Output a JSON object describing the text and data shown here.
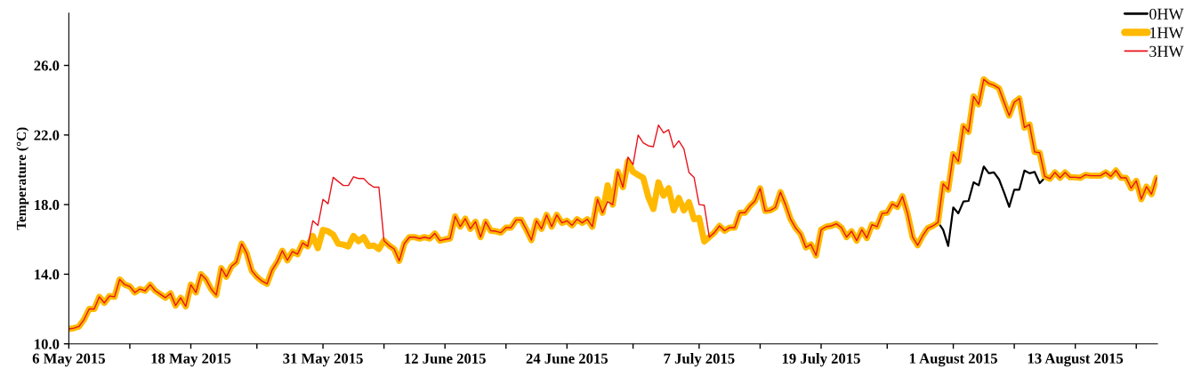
{
  "chart_data": {
    "type": "line",
    "ylabel": "Temperature (°C)",
    "xlim": [
      "2015-05-06T00:00",
      "2015-08-21T02:00"
    ],
    "ylim": [
      10,
      29
    ],
    "yticks": [
      {
        "value": 10,
        "label": "10.0"
      },
      {
        "value": 14,
        "label": "14.0"
      },
      {
        "value": 18,
        "label": "18.0"
      },
      {
        "value": 22,
        "label": "22.0"
      },
      {
        "value": 26,
        "label": "26.0"
      }
    ],
    "xticks": [
      {
        "value": "2015-05-06",
        "label": "6 May 2015"
      },
      {
        "value": "2015-05-12",
        "label": null
      },
      {
        "value": "2015-05-18",
        "label": "18 May 2015"
      },
      {
        "value": "2015-05-24T12:00",
        "label": null
      },
      {
        "value": "2015-05-31",
        "label": "31 May 2015"
      },
      {
        "value": "2015-06-06",
        "label": null
      },
      {
        "value": "2015-06-12",
        "label": "12 June 2015"
      },
      {
        "value": "2015-06-18",
        "label": null
      },
      {
        "value": "2015-06-24",
        "label": "24 June 2015"
      },
      {
        "value": "2015-06-30T12:00",
        "label": null
      },
      {
        "value": "2015-07-07",
        "label": "7 July 2015"
      },
      {
        "value": "2015-07-13",
        "label": null
      },
      {
        "value": "2015-07-19",
        "label": "19 July 2015"
      },
      {
        "value": "2015-07-25T12:00",
        "label": null
      },
      {
        "value": "2015-08-01",
        "label": "1 August 2015"
      },
      {
        "value": "2015-08-07",
        "label": null
      },
      {
        "value": "2015-08-13",
        "label": "13 August 2015"
      },
      {
        "value": "2015-08-19",
        "label": null
      }
    ],
    "grid": false,
    "legend": "top right",
    "line_style": "solid",
    "marker": "none",
    "x": [
      "2015-05-06T00:00",
      "2015-05-06T12:00",
      "2015-05-07T00:00",
      "2015-05-07T12:00",
      "2015-05-08T00:00",
      "2015-05-08T12:00",
      "2015-05-09T00:00",
      "2015-05-09T12:00",
      "2015-05-10T00:00",
      "2015-05-10T12:00",
      "2015-05-11T00:00",
      "2015-05-11T12:00",
      "2015-05-12T00:00",
      "2015-05-12T12:00",
      "2015-05-13T00:00",
      "2015-05-13T12:00",
      "2015-05-14T00:00",
      "2015-05-14T12:00",
      "2015-05-15T00:00",
      "2015-05-15T12:00",
      "2015-05-16T00:00",
      "2015-05-16T12:00",
      "2015-05-17T00:00",
      "2015-05-17T12:00",
      "2015-05-18T00:00",
      "2015-05-18T12:00",
      "2015-05-19T00:00",
      "2015-05-19T12:00",
      "2015-05-20T00:00",
      "2015-05-20T12:00",
      "2015-05-21T00:00",
      "2015-05-21T12:00",
      "2015-05-22T00:00",
      "2015-05-22T12:00",
      "2015-05-23T00:00",
      "2015-05-23T12:00",
      "2015-05-24T00:00",
      "2015-05-24T12:00",
      "2015-05-25T00:00",
      "2015-05-25T12:00",
      "2015-05-26T00:00",
      "2015-05-26T12:00",
      "2015-05-27T00:00",
      "2015-05-27T12:00",
      "2015-05-28T00:00",
      "2015-05-28T12:00",
      "2015-05-29T00:00",
      "2015-05-29T12:00",
      "2015-05-30T00:00",
      "2015-05-30T12:00",
      "2015-05-31T00:00",
      "2015-05-31T12:00",
      "2015-06-01T00:00",
      "2015-06-01T12:00",
      "2015-06-02T00:00",
      "2015-06-02T12:00",
      "2015-06-03T00:00",
      "2015-06-03T12:00",
      "2015-06-04T00:00",
      "2015-06-04T12:00",
      "2015-06-05T00:00",
      "2015-06-05T12:00",
      "2015-06-06T00:00",
      "2015-06-06T12:00",
      "2015-06-07T00:00",
      "2015-06-07T12:00",
      "2015-06-08T00:00",
      "2015-06-08T12:00",
      "2015-06-09T00:00",
      "2015-06-09T12:00",
      "2015-06-10T00:00",
      "2015-06-10T12:00",
      "2015-06-11T00:00",
      "2015-06-11T12:00",
      "2015-06-12T00:00",
      "2015-06-12T12:00",
      "2015-06-13T00:00",
      "2015-06-13T12:00",
      "2015-06-14T00:00",
      "2015-06-14T12:00",
      "2015-06-15T00:00",
      "2015-06-15T12:00",
      "2015-06-16T00:00",
      "2015-06-16T12:00",
      "2015-06-17T00:00",
      "2015-06-17T12:00",
      "2015-06-18T00:00",
      "2015-06-18T12:00",
      "2015-06-19T00:00",
      "2015-06-19T12:00",
      "2015-06-20T00:00",
      "2015-06-20T12:00",
      "2015-06-21T00:00",
      "2015-06-21T12:00",
      "2015-06-22T00:00",
      "2015-06-22T12:00",
      "2015-06-23T00:00",
      "2015-06-23T12:00",
      "2015-06-24T00:00",
      "2015-06-24T12:00",
      "2015-06-25T00:00",
      "2015-06-25T12:00",
      "2015-06-26T00:00",
      "2015-06-26T12:00",
      "2015-06-27T00:00",
      "2015-06-27T12:00",
      "2015-06-28T00:00",
      "2015-06-28T12:00",
      "2015-06-29T00:00",
      "2015-06-29T12:00",
      "2015-06-30T00:00",
      "2015-06-30T12:00",
      "2015-07-01T00:00",
      "2015-07-01T12:00",
      "2015-07-02T00:00",
      "2015-07-02T12:00",
      "2015-07-03T00:00",
      "2015-07-03T12:00",
      "2015-07-04T00:00",
      "2015-07-04T12:00",
      "2015-07-05T00:00",
      "2015-07-05T12:00",
      "2015-07-06T00:00",
      "2015-07-06T12:00",
      "2015-07-07T00:00",
      "2015-07-07T12:00",
      "2015-07-08T00:00",
      "2015-07-08T12:00",
      "2015-07-09T00:00",
      "2015-07-09T12:00",
      "2015-07-10T00:00",
      "2015-07-10T12:00",
      "2015-07-11T00:00",
      "2015-07-11T12:00",
      "2015-07-12T00:00",
      "2015-07-12T12:00",
      "2015-07-13T00:00",
      "2015-07-13T12:00",
      "2015-07-14T00:00",
      "2015-07-14T12:00",
      "2015-07-15T00:00",
      "2015-07-15T12:00",
      "2015-07-16T00:00",
      "2015-07-16T12:00",
      "2015-07-17T00:00",
      "2015-07-17T12:00",
      "2015-07-18T00:00",
      "2015-07-18T12:00",
      "2015-07-19T00:00",
      "2015-07-19T12:00",
      "2015-07-20T00:00",
      "2015-07-20T12:00",
      "2015-07-21T00:00",
      "2015-07-21T12:00",
      "2015-07-22T00:00",
      "2015-07-22T12:00",
      "2015-07-23T00:00",
      "2015-07-23T12:00",
      "2015-07-24T00:00",
      "2015-07-24T12:00",
      "2015-07-25T00:00",
      "2015-07-25T12:00",
      "2015-07-26T00:00",
      "2015-07-26T12:00",
      "2015-07-27T00:00",
      "2015-07-27T12:00",
      "2015-07-28T00:00",
      "2015-07-28T12:00",
      "2015-07-29T00:00",
      "2015-07-29T12:00",
      "2015-07-30T00:00",
      "2015-07-30T12:00",
      "2015-07-31T00:00",
      "2015-07-31T12:00",
      "2015-08-01T00:00",
      "2015-08-01T12:00",
      "2015-08-02T00:00",
      "2015-08-02T12:00",
      "2015-08-03T00:00",
      "2015-08-03T12:00",
      "2015-08-04T00:00",
      "2015-08-04T12:00",
      "2015-08-05T00:00",
      "2015-08-05T12:00",
      "2015-08-06T00:00",
      "2015-08-06T12:00",
      "2015-08-07T00:00",
      "2015-08-07T12:00",
      "2015-08-08T00:00",
      "2015-08-08T12:00",
      "2015-08-09T00:00",
      "2015-08-09T12:00",
      "2015-08-10T00:00",
      "2015-08-10T12:00",
      "2015-08-11T00:00",
      "2015-08-11T12:00",
      "2015-08-12T00:00",
      "2015-08-12T12:00",
      "2015-08-13T00:00",
      "2015-08-13T12:00",
      "2015-08-14T00:00",
      "2015-08-14T12:00",
      "2015-08-15T00:00",
      "2015-08-15T12:00",
      "2015-08-16T00:00",
      "2015-08-16T12:00",
      "2015-08-17T00:00",
      "2015-08-17T12:00",
      "2015-08-18T00:00",
      "2015-08-18T12:00",
      "2015-08-19T00:00",
      "2015-08-19T12:00",
      "2015-08-20T00:00",
      "2015-08-20T12:00",
      "2015-08-21T00:00"
    ],
    "series": [
      {
        "name": "0HW",
        "color": "#000000",
        "x": [
          "2015-07-30T12:00",
          "2015-07-31T00:00",
          "2015-07-31T12:00",
          "2015-08-01T00:00",
          "2015-08-01T12:00",
          "2015-08-02T00:00",
          "2015-08-02T12:00",
          "2015-08-03T00:00",
          "2015-08-03T12:00",
          "2015-08-04T00:00",
          "2015-08-04T12:00",
          "2015-08-05T00:00",
          "2015-08-05T12:00",
          "2015-08-06T00:00",
          "2015-08-06T12:00",
          "2015-08-07T00:00",
          "2015-08-07T12:00",
          "2015-08-08T00:00",
          "2015-08-08T12:00",
          "2015-08-09T00:00",
          "2015-08-09T12:00",
          "2015-08-10T00:00"
        ],
        "values": [
          16.98,
          16.56,
          15.62,
          17.84,
          17.5,
          18.18,
          18.21,
          19.28,
          19.11,
          20.19,
          19.8,
          19.85,
          19.45,
          18.69,
          17.87,
          18.86,
          18.86,
          19.96,
          19.8,
          19.88,
          19.23,
          19.54
        ]
      },
      {
        "name": "1HW",
        "color": "#ffb900",
        "values": [
          10.85,
          10.9,
          11.0,
          11.4,
          12.0,
          12.0,
          12.7,
          12.35,
          12.75,
          12.7,
          13.7,
          13.4,
          13.3,
          12.95,
          13.15,
          13.05,
          13.4,
          13.05,
          12.85,
          12.65,
          12.9,
          12.2,
          12.65,
          12.15,
          13.4,
          12.95,
          14.0,
          13.7,
          13.15,
          12.8,
          14.35,
          13.85,
          14.45,
          14.7,
          15.75,
          15.2,
          14.2,
          13.85,
          13.6,
          13.45,
          14.25,
          14.7,
          15.35,
          14.8,
          15.3,
          15.15,
          15.8,
          15.6,
          16.2,
          15.5,
          16.55,
          16.47,
          16.27,
          15.75,
          15.7,
          15.6,
          16.2,
          15.9,
          16.13,
          15.62,
          15.65,
          15.45,
          15.93,
          15.65,
          15.45,
          14.77,
          15.76,
          16.13,
          16.13,
          16.05,
          16.13,
          16.05,
          16.34,
          15.93,
          16.0,
          16.05,
          17.33,
          16.73,
          17.19,
          16.61,
          17.02,
          16.13,
          17.02,
          16.5,
          16.47,
          16.39,
          16.68,
          16.68,
          17.12,
          17.12,
          16.56,
          15.96,
          17.07,
          16.61,
          17.41,
          16.73,
          17.41,
          16.95,
          17.07,
          16.81,
          17.16,
          16.95,
          17.16,
          16.73,
          18.31,
          17.53,
          19.11,
          18.0,
          19.9,
          19.0,
          20.5,
          19.88,
          19.71,
          19.54,
          18.43,
          17.75,
          19.28,
          18.52,
          18.94,
          17.67,
          18.38,
          17.67,
          18.14,
          17.16,
          17.24,
          15.88,
          16.13,
          16.39,
          16.78,
          16.5,
          16.68,
          16.68,
          17.53,
          17.53,
          17.92,
          18.21,
          18.94,
          17.63,
          17.67,
          17.84,
          18.72,
          18.0,
          17.16,
          16.65,
          16.3,
          15.54,
          15.71,
          15.08,
          16.56,
          16.73,
          16.78,
          16.9,
          16.68,
          16.13,
          16.47,
          15.93,
          16.56,
          16.08,
          16.85,
          16.73,
          17.5,
          17.53,
          18.04,
          17.87,
          18.48,
          17.5,
          16.13,
          15.66,
          16.22,
          16.65,
          16.78,
          16.98,
          19.2,
          18.86,
          20.9,
          20.48,
          22.52,
          22.18,
          24.22,
          23.76,
          25.2,
          24.96,
          24.86,
          24.68,
          23.88,
          23.12,
          23.88,
          24.1,
          22.43,
          22.6,
          21.03,
          20.98,
          19.62,
          19.49,
          19.85,
          19.54,
          19.85,
          19.57,
          19.57,
          19.54,
          19.71,
          19.66,
          19.66,
          19.67,
          19.85,
          19.62,
          19.96,
          19.54,
          19.54,
          18.94,
          19.37,
          18.31,
          19.03,
          18.6,
          19.54
        ]
      },
      {
        "name": "3HW",
        "color": "#e8141b",
        "values": [
          10.85,
          10.9,
          11.0,
          11.4,
          12.0,
          12.0,
          12.7,
          12.35,
          12.75,
          12.7,
          13.7,
          13.4,
          13.3,
          12.95,
          13.15,
          13.05,
          13.4,
          13.05,
          12.85,
          12.65,
          12.9,
          12.2,
          12.65,
          12.15,
          13.4,
          12.95,
          14.0,
          13.7,
          13.15,
          12.8,
          14.35,
          13.85,
          14.45,
          14.7,
          15.75,
          15.2,
          14.2,
          13.85,
          13.6,
          13.45,
          14.25,
          14.7,
          15.35,
          14.8,
          15.3,
          15.15,
          15.8,
          15.6,
          17.07,
          16.8,
          18.3,
          18.05,
          19.57,
          19.33,
          19.1,
          19.1,
          19.6,
          19.5,
          19.5,
          19.2,
          19.0,
          19.0,
          15.93,
          15.65,
          15.45,
          14.77,
          15.76,
          16.13,
          16.13,
          16.05,
          16.13,
          16.05,
          16.34,
          15.93,
          16.0,
          16.05,
          17.33,
          16.73,
          17.19,
          16.61,
          17.02,
          16.13,
          17.02,
          16.5,
          16.47,
          16.39,
          16.68,
          16.68,
          17.12,
          17.12,
          16.56,
          15.96,
          17.07,
          16.61,
          17.41,
          16.73,
          17.41,
          16.95,
          17.07,
          16.81,
          17.16,
          16.95,
          17.16,
          16.73,
          18.31,
          17.53,
          18.17,
          18.0,
          19.9,
          19.0,
          20.73,
          20.3,
          22.0,
          21.55,
          21.38,
          21.33,
          22.57,
          22.13,
          22.3,
          21.28,
          21.67,
          21.21,
          19.85,
          19.57,
          18.0,
          17.97,
          16.13,
          16.39,
          16.78,
          16.5,
          16.68,
          16.68,
          17.53,
          17.53,
          17.92,
          18.21,
          18.94,
          17.63,
          17.67,
          17.84,
          18.72,
          18.0,
          17.16,
          16.65,
          16.3,
          15.54,
          15.71,
          15.08,
          16.56,
          16.73,
          16.78,
          16.9,
          16.68,
          16.13,
          16.47,
          15.93,
          16.56,
          16.08,
          16.85,
          16.73,
          17.5,
          17.53,
          18.04,
          17.87,
          18.48,
          17.5,
          16.13,
          15.66,
          16.22,
          16.65,
          16.78,
          16.98,
          19.2,
          18.86,
          20.9,
          20.48,
          22.52,
          22.18,
          24.22,
          23.76,
          25.2,
          24.96,
          24.86,
          24.68,
          23.88,
          23.12,
          23.88,
          24.1,
          22.43,
          22.6,
          21.03,
          20.98,
          19.62,
          19.49,
          19.85,
          19.54,
          19.85,
          19.57,
          19.57,
          19.54,
          19.71,
          19.66,
          19.66,
          19.67,
          19.85,
          19.62,
          19.96,
          19.54,
          19.54,
          18.94,
          19.37,
          18.31,
          19.03,
          18.6,
          19.54
        ]
      }
    ]
  }
}
